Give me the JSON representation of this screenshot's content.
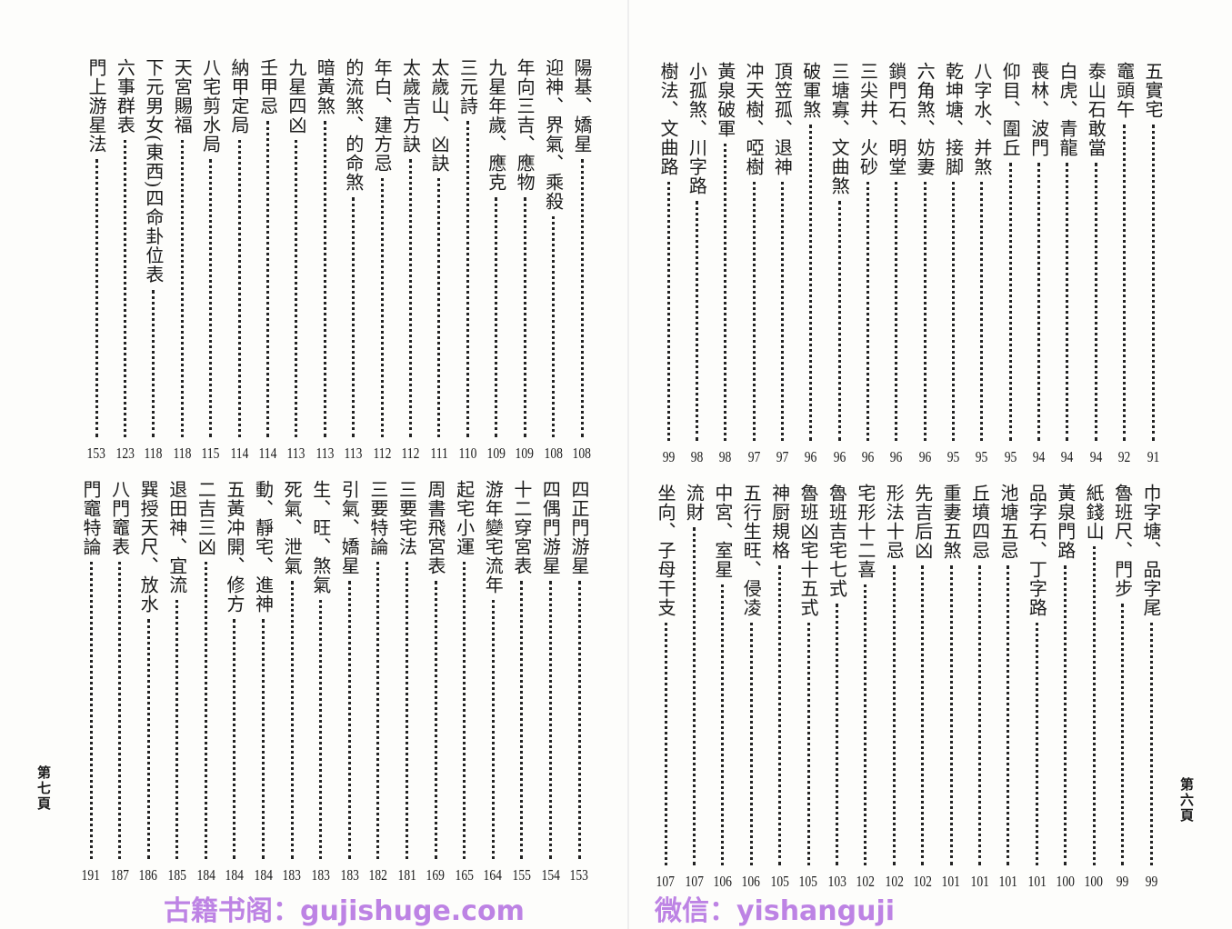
{
  "right_page": {
    "label": "第六頁",
    "top": [
      {
        "title": "五實宅",
        "page": "91"
      },
      {
        "title": "竈頭午",
        "page": "92"
      },
      {
        "title": "泰山石敢當",
        "page": "94"
      },
      {
        "title": "白虎、青龍",
        "page": "94"
      },
      {
        "title": "喪林、波門",
        "page": "94"
      },
      {
        "title": "仰目、圍丘",
        "page": "95"
      },
      {
        "title": "八字水、并煞",
        "page": "95"
      },
      {
        "title": "乾坤塘、接脚",
        "page": "95"
      },
      {
        "title": "六角煞、妨妻",
        "page": "96"
      },
      {
        "title": "鎖門石、明堂",
        "page": "96"
      },
      {
        "title": "三尖井、火砂",
        "page": "96"
      },
      {
        "title": "三塘寡、文曲煞",
        "page": "96"
      },
      {
        "title": "破軍煞",
        "page": "96"
      },
      {
        "title": "頂笠孤、退神",
        "page": "97"
      },
      {
        "title": "冲天樹、啞樹",
        "page": "97"
      },
      {
        "title": "黃泉破軍",
        "page": "98"
      },
      {
        "title": "小孤煞、川字路",
        "page": "98"
      },
      {
        "title": "樹法、文曲路",
        "page": "99"
      }
    ],
    "bottom": [
      {
        "title": "巾字塘、品字尾",
        "page": "99"
      },
      {
        "title": "魯班尺、門步",
        "page": "99"
      },
      {
        "title": "紙錢山",
        "page": "100"
      },
      {
        "title": "黃泉門路",
        "page": "100"
      },
      {
        "title": "品字石、丁字路",
        "page": "101"
      },
      {
        "title": "池塘五忌",
        "page": "101"
      },
      {
        "title": "丘墳四忌",
        "page": "101"
      },
      {
        "title": "重妻五煞",
        "page": "101"
      },
      {
        "title": "先吉后凶",
        "page": "102"
      },
      {
        "title": "形法十忌",
        "page": "102"
      },
      {
        "title": "宅形十二喜",
        "page": "102"
      },
      {
        "title": "魯班吉宅七式",
        "page": "103"
      },
      {
        "title": "魯班凶宅十五式",
        "page": "105"
      },
      {
        "title": "神厨規格",
        "page": "105"
      },
      {
        "title": "五行生旺、侵凌",
        "page": "106"
      },
      {
        "title": "中宮、室星",
        "page": "106"
      },
      {
        "title": "流財",
        "page": "107"
      },
      {
        "title": "坐向、子母干支",
        "page": "107"
      }
    ]
  },
  "left_page": {
    "label": "第七頁",
    "top": [
      {
        "title": "陽基、嬌星",
        "page": "108"
      },
      {
        "title": "迎神、界氣、乘殺",
        "page": "108"
      },
      {
        "title": "年向三吉、應物",
        "page": "109"
      },
      {
        "title": "九星年歲、應克",
        "page": "109"
      },
      {
        "title": "三元詩",
        "page": "110"
      },
      {
        "title": "太歲山、凶訣",
        "page": "111"
      },
      {
        "title": "太歲吉方訣",
        "page": "112"
      },
      {
        "title": "年白、建方忌",
        "page": "112"
      },
      {
        "title": "的流煞、的命煞",
        "page": "113"
      },
      {
        "title": "暗黃煞",
        "page": "113"
      },
      {
        "title": "九星四凶",
        "page": "113"
      },
      {
        "title": "壬甲忌",
        "page": "114"
      },
      {
        "title": "納甲定局",
        "page": "114"
      },
      {
        "title": "八宅剪水局",
        "page": "115"
      },
      {
        "title": "天宮賜福",
        "page": "118"
      },
      {
        "title": "下元男女(東西)四命卦位表",
        "page": "118"
      },
      {
        "title": "六事群表",
        "page": "123"
      },
      {
        "title": "門上游星法",
        "page": "153"
      }
    ],
    "bottom": [
      {
        "title": "四正門游星",
        "page": "153"
      },
      {
        "title": "四偶門游星",
        "page": "154"
      },
      {
        "title": "十二穿宮表",
        "page": "155"
      },
      {
        "title": "游年變宅流年",
        "page": "164"
      },
      {
        "title": "起宅小運",
        "page": "165"
      },
      {
        "title": "周書飛宮表",
        "page": "169"
      },
      {
        "title": "三要宅法",
        "page": "181"
      },
      {
        "title": "三要特論",
        "page": "182"
      },
      {
        "title": "引氣、嬌星",
        "page": "183"
      },
      {
        "title": "生、旺、煞氣",
        "page": "183"
      },
      {
        "title": "死氣、泄氣",
        "page": "183"
      },
      {
        "title": "動、靜宅、進神",
        "page": "184"
      },
      {
        "title": "五黃冲開、修方",
        "page": "184"
      },
      {
        "title": "二吉三凶",
        "page": "184"
      },
      {
        "title": "退田神、宜流",
        "page": "185"
      },
      {
        "title": "巽授天尺、放水",
        "page": "186"
      },
      {
        "title": "八門竈表",
        "page": "187"
      },
      {
        "title": "門竈特論",
        "page": "191"
      }
    ]
  },
  "watermark": {
    "line1": "古籍书阁：gujishuge.com",
    "line2": "微信：yishanguji",
    "color": "#b36ee0"
  }
}
